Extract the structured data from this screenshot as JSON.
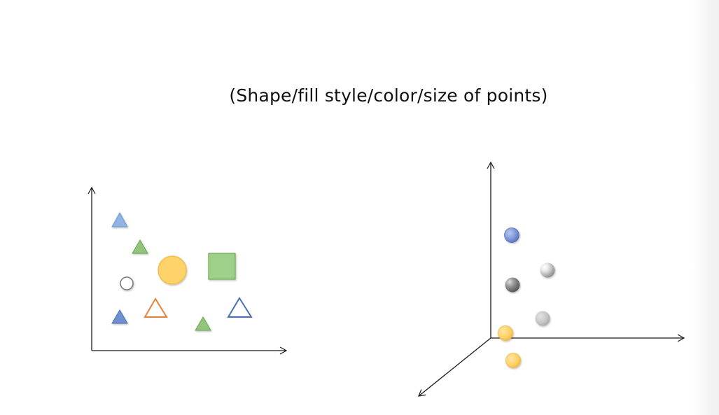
{
  "caption": "(Shape/fill style/color/size of points)",
  "colors": {
    "axis": "#1a1a1a",
    "light_blue": "#8fb4e3",
    "blue": "#6f8fd0",
    "green": "#93c47d",
    "green_stroke": "#6aa84f",
    "orange": "#e6833b",
    "yellow": "#ffd36b",
    "yellow_stroke": "#f0b93a",
    "navy_stroke": "#4a6fb3",
    "gray_dark": "#8a8a8a",
    "gray_light": "#c6c6c6"
  },
  "diagrams": [
    {
      "name": "2d-scatter",
      "axes": [
        "x",
        "y"
      ],
      "points": [
        {
          "shape": "triangle",
          "fill": "solid",
          "color": "light_blue",
          "size": "small"
        },
        {
          "shape": "triangle",
          "fill": "solid",
          "color": "green",
          "size": "small"
        },
        {
          "shape": "circle",
          "fill": "solid",
          "color": "yellow",
          "size": "large"
        },
        {
          "shape": "square",
          "fill": "solid",
          "color": "green",
          "size": "large"
        },
        {
          "shape": "circle",
          "fill": "hollow",
          "color": "gray_dark",
          "size": "small"
        },
        {
          "shape": "triangle",
          "fill": "hollow",
          "color": "orange",
          "size": "medium"
        },
        {
          "shape": "triangle",
          "fill": "solid",
          "color": "blue",
          "size": "small"
        },
        {
          "shape": "triangle",
          "fill": "solid",
          "color": "green",
          "size": "small"
        },
        {
          "shape": "triangle",
          "fill": "hollow",
          "color": "navy_stroke",
          "size": "medium"
        }
      ]
    },
    {
      "name": "3d-scatter",
      "axes": [
        "x",
        "y",
        "z"
      ],
      "points": [
        {
          "shape": "sphere",
          "color": "blue"
        },
        {
          "shape": "sphere",
          "color": "gray_light"
        },
        {
          "shape": "sphere",
          "color": "gray_dark"
        },
        {
          "shape": "sphere",
          "color": "gray_light"
        },
        {
          "shape": "sphere",
          "color": "yellow"
        },
        {
          "shape": "sphere",
          "color": "yellow"
        }
      ]
    }
  ]
}
